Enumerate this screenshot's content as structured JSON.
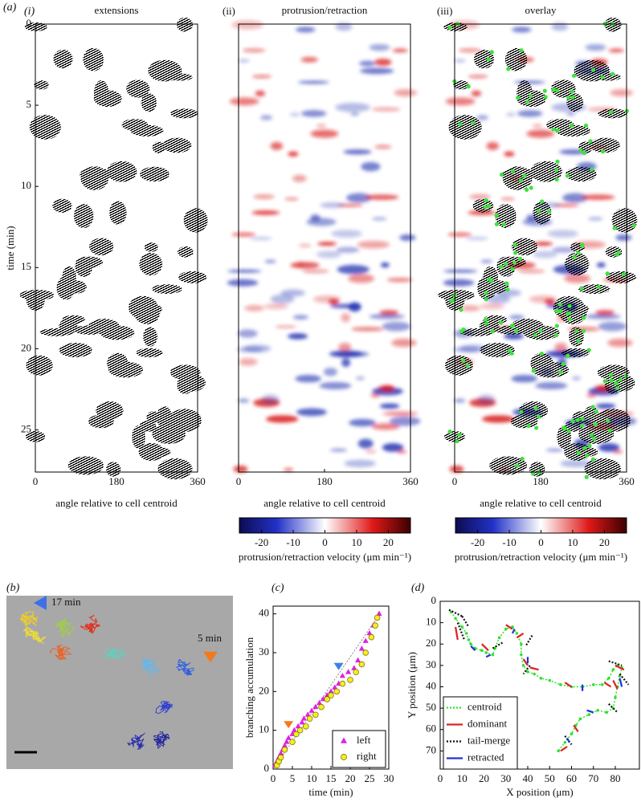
{
  "chart_data": [
    {
      "type": "raster",
      "figure_label": "(a)",
      "panel_label": "(i)",
      "title": "extensions",
      "xlabel": "angle relative to cell centroid",
      "ylabel": "time (min)",
      "xlim": [
        0,
        360
      ],
      "xticks": [
        0,
        180,
        360
      ],
      "ylim": [
        0,
        27.6
      ],
      "y_inverted": true,
      "yticks": [
        0,
        5,
        10,
        15,
        20,
        25
      ]
    },
    {
      "type": "heatmap",
      "panel_label": "(ii)",
      "title": "protrusion/retraction",
      "xlabel": "angle relative to cell centroid",
      "xlim": [
        0,
        360
      ],
      "xticks": [
        0,
        180,
        360
      ],
      "colorbar": {
        "label": "protrusion/retraction velocity (μm min⁻¹)",
        "lim": [
          -27,
          27
        ],
        "ticks": [
          -20,
          -10,
          0,
          10,
          20
        ]
      }
    },
    {
      "type": "overlay",
      "panel_label": "(iii)",
      "title": "overlay",
      "xlabel": "angle relative to cell centroid",
      "xlim": [
        0,
        360
      ],
      "xticks": [
        0,
        180,
        360
      ],
      "colorbar": {
        "label": "protrusion/retraction velocity (μm min⁻¹)",
        "lim": [
          -27,
          27
        ],
        "ticks": [
          -20,
          -10,
          0,
          10,
          20
        ]
      }
    },
    {
      "type": "image",
      "panel_label": "(b)",
      "annotations": [
        {
          "text": "17 min",
          "color": "#3f6fe8"
        },
        {
          "text": "5 min",
          "color": "#f07a20"
        }
      ]
    },
    {
      "type": "scatter",
      "panel_label": "(c)",
      "xlabel": "time (min)",
      "ylabel": "branching accumulation",
      "xlim": [
        0,
        30
      ],
      "xticks": [
        0,
        5,
        10,
        15,
        20,
        25,
        30
      ],
      "ylim": [
        0,
        42
      ],
      "yticks": [
        0,
        10,
        20,
        30,
        40
      ],
      "legend": "lower right",
      "series": [
        {
          "name": "left",
          "marker": "triangle",
          "color": "#e020e0",
          "x": [
            0.5,
            1,
            1.5,
            2,
            2.5,
            3,
            3.5,
            4,
            5,
            5.5,
            6.5,
            7.5,
            8,
            9,
            10,
            11,
            12,
            13,
            14,
            15,
            16,
            17,
            18,
            19.5,
            21,
            22,
            23,
            24,
            25,
            26,
            27.5
          ],
          "values": [
            1,
            2,
            3,
            4,
            5,
            6,
            7,
            8,
            9,
            10,
            11,
            12,
            13,
            14,
            15,
            16,
            17,
            18,
            19,
            20,
            21,
            22,
            24,
            25,
            26,
            28,
            31,
            33,
            35,
            37,
            40
          ]
        },
        {
          "name": "right",
          "marker": "circle",
          "color": "#f0f020",
          "x": [
            1,
            1.5,
            2,
            3,
            5,
            6,
            7,
            8.5,
            9.5,
            11,
            12.5,
            14,
            15,
            16.5,
            18,
            20,
            21.5,
            23,
            24,
            25.5,
            26.5,
            27
          ],
          "values": [
            1,
            2,
            3,
            5,
            7,
            9,
            10,
            11,
            13,
            14,
            16,
            18,
            19,
            20,
            22,
            23,
            25,
            27,
            30,
            34,
            37,
            39
          ]
        }
      ],
      "markers": [
        {
          "x": 4,
          "y": 11.5,
          "color": "#f07a20"
        },
        {
          "x": 17,
          "y": 26.5,
          "color": "#3f7fe8"
        }
      ]
    },
    {
      "type": "line",
      "panel_label": "(d)",
      "xlabel": "X position (μm)",
      "ylabel": "Y position (μm)",
      "xlim": [
        0,
        91
      ],
      "xticks": [
        0,
        10,
        20,
        30,
        40,
        50,
        60,
        70,
        80
      ],
      "ylim": [
        0,
        78.5
      ],
      "y_inverted": true,
      "yticks": [
        0,
        10,
        20,
        30,
        40,
        50,
        60,
        70
      ],
      "legend": "lower left",
      "series": [
        {
          "name": "centroid",
          "color": "#30e030",
          "linestyle": "dotted",
          "x": [
            5,
            7,
            10,
            12,
            13,
            14,
            16,
            19,
            21,
            24,
            25,
            27,
            30,
            33,
            35,
            37,
            37,
            38,
            40,
            43,
            46,
            50,
            55,
            60,
            65,
            70,
            74,
            77,
            79,
            81,
            83,
            82,
            81,
            80,
            79,
            76,
            72,
            68,
            64,
            62,
            60,
            57,
            54
          ],
          "values": [
            5,
            8,
            12,
            15,
            18,
            20,
            22,
            23,
            24,
            25,
            22,
            17,
            13,
            12,
            15,
            20,
            25,
            30,
            33,
            34,
            36,
            37,
            39,
            40,
            40,
            39,
            39,
            36,
            32,
            30,
            31,
            35,
            40,
            45,
            50,
            52,
            51,
            53,
            55,
            58,
            62,
            66,
            70
          ]
        },
        {
          "name": "dominant",
          "color": "#e02020",
          "linestyle": "solid",
          "x": [
            7,
            8,
            null,
            19,
            22,
            null,
            30,
            33,
            null,
            35,
            38,
            null,
            38,
            40,
            null,
            41,
            45,
            null,
            57,
            60,
            null,
            75,
            78,
            null,
            80,
            84,
            null,
            79,
            81,
            null,
            61,
            63,
            null,
            55,
            58
          ],
          "values": [
            12,
            18,
            null,
            20,
            23,
            null,
            11,
            13,
            null,
            17,
            15,
            null,
            27,
            30,
            null,
            31,
            32,
            null,
            38,
            40,
            null,
            38,
            40,
            null,
            30,
            32,
            null,
            37,
            41,
            null,
            58,
            61,
            null,
            70,
            68
          ]
        },
        {
          "name": "tail-merge",
          "color": "#111111",
          "linestyle": "dotted",
          "x": [
            4,
            10,
            null,
            10,
            13,
            null,
            8,
            11,
            null,
            24,
            29,
            null,
            42,
            39,
            null,
            41,
            38,
            null,
            77,
            83,
            null,
            82,
            86,
            null,
            77,
            81,
            null,
            57,
            60
          ],
          "values": [
            4,
            7,
            null,
            7,
            12,
            null,
            10,
            18,
            null,
            22,
            19,
            null,
            16,
            21,
            null,
            30,
            34,
            null,
            28,
            30,
            null,
            34,
            39,
            null,
            48,
            52,
            null,
            63,
            67
          ]
        },
        {
          "name": "retracted",
          "color": "#2030e0",
          "linestyle": "solid",
          "x": [
            14,
            16,
            null,
            21,
            23,
            null,
            33,
            34,
            null,
            40,
            40,
            null,
            65,
            65,
            null,
            82,
            83,
            null,
            67,
            70,
            null,
            58,
            59
          ],
          "values": [
            21,
            23,
            null,
            26,
            25,
            null,
            15,
            13,
            null,
            26,
            29,
            null,
            39,
            42,
            null,
            36,
            40,
            null,
            51,
            52,
            null,
            64,
            66
          ]
        }
      ]
    }
  ]
}
